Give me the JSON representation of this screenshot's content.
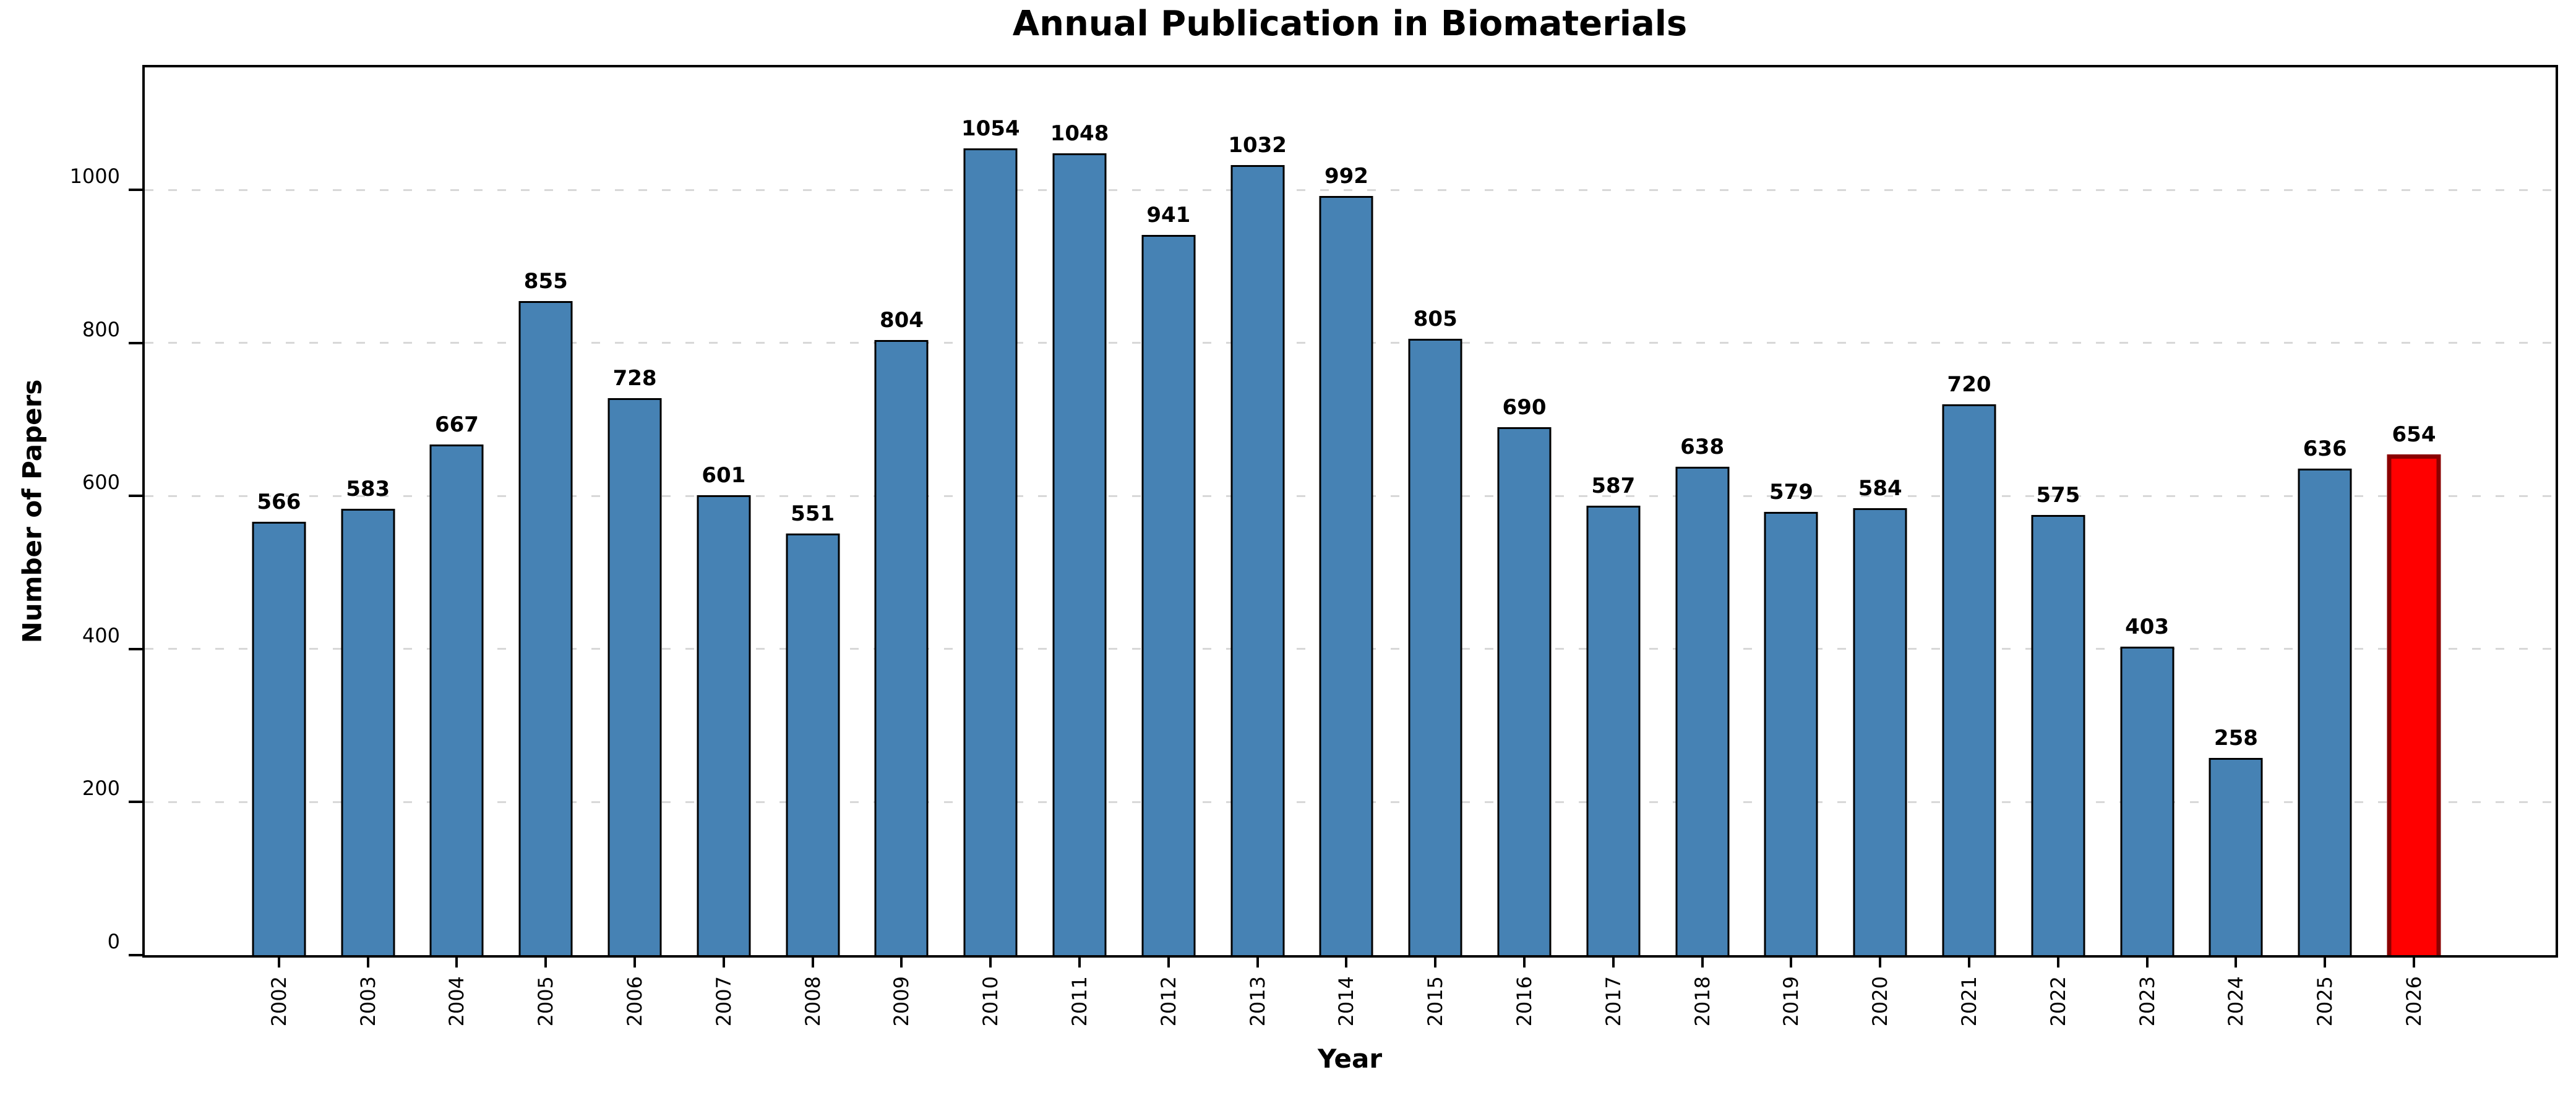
{
  "title": "Annual Publication in Biomaterials",
  "chart_data": {
    "type": "bar",
    "title": "Annual Publication in Biomaterials",
    "xlabel": "Year",
    "ylabel": "Number of Papers",
    "categories": [
      "2002",
      "2003",
      "2004",
      "2005",
      "2006",
      "2007",
      "2008",
      "2009",
      "2010",
      "2011",
      "2012",
      "2013",
      "2014",
      "2015",
      "2016",
      "2017",
      "2018",
      "2019",
      "2020",
      "2021",
      "2022",
      "2023",
      "2024",
      "2025",
      "2026"
    ],
    "values": [
      566,
      583,
      667,
      855,
      728,
      601,
      551,
      804,
      1054,
      1048,
      941,
      1032,
      992,
      805,
      690,
      587,
      638,
      579,
      584,
      720,
      575,
      403,
      258,
      636,
      654
    ],
    "value_labels_shown": true,
    "ylim": [
      0,
      1160
    ],
    "yticks": [
      0,
      200,
      400,
      600,
      800,
      1000
    ],
    "grid": "horizontal-dashed",
    "grid_color": "#d8d8d8",
    "bar_color": "#4682B4",
    "bar_edge_color": "#000000",
    "highlight_index": 24,
    "highlight_color": "#FF0000",
    "highlight_edge_color": "#8B0000",
    "legend_position": "none"
  }
}
